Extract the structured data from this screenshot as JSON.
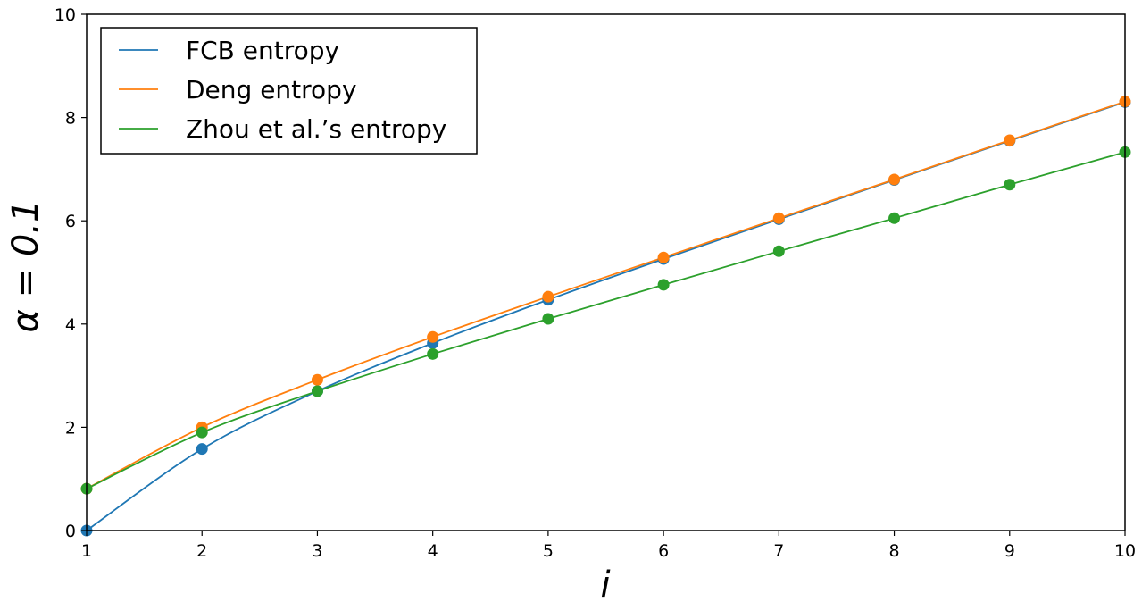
{
  "chart_data": {
    "type": "line",
    "xlabel": "i",
    "ylabel": "α = 0.1",
    "xlim": [
      1,
      10
    ],
    "ylim": [
      0,
      10
    ],
    "x_ticks": [
      "1",
      "2",
      "3",
      "4",
      "5",
      "6",
      "7",
      "8",
      "9",
      "10"
    ],
    "y_ticks": [
      "0",
      "2",
      "4",
      "6",
      "8",
      "10"
    ],
    "grid": false,
    "legend_position": "top-left",
    "x": [
      1,
      2,
      3,
      4,
      5,
      6,
      7,
      8,
      9,
      10
    ],
    "series": [
      {
        "name": "FCB  entropy",
        "color": "#1f77b4",
        "values": [
          0.0,
          1.58,
          2.7,
          3.63,
          4.47,
          5.26,
          6.03,
          6.79,
          7.55,
          8.3
        ]
      },
      {
        "name": "Deng  entropy",
        "color": "#ff7f0e",
        "values": [
          0.81,
          2.0,
          2.92,
          3.75,
          4.53,
          5.29,
          6.05,
          6.8,
          7.56,
          8.31
        ]
      },
      {
        "name": "Zhou et al.’s entropy",
        "color": "#2ca02c",
        "values": [
          0.81,
          1.9,
          2.7,
          3.42,
          4.1,
          4.76,
          5.41,
          6.05,
          6.7,
          7.33
        ]
      }
    ]
  }
}
